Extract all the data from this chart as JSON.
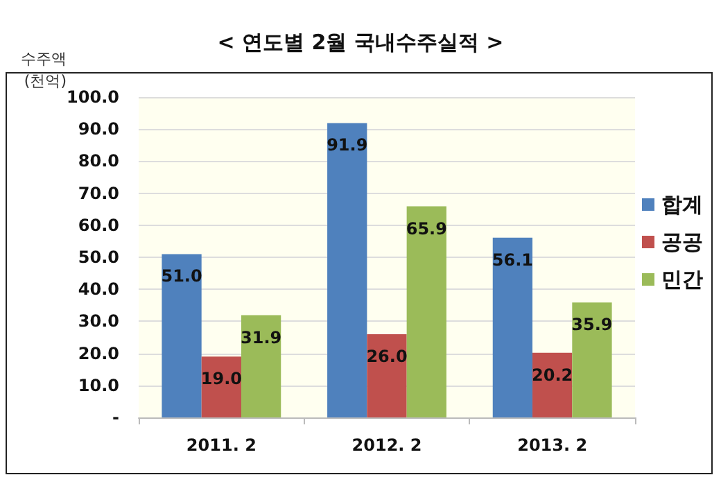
{
  "chart_data": {
    "type": "bar",
    "title": "< 연도별 2월 국내수주실적 >",
    "ylabel": "수주액\n(천억)",
    "categories": [
      "2011. 2",
      "2012. 2",
      "2013. 2"
    ],
    "series": [
      {
        "name": "합계",
        "color": "#4f81bd",
        "values": [
          51.0,
          91.9,
          56.1
        ],
        "value_labels": [
          "51.0",
          "91.9",
          "56.1"
        ]
      },
      {
        "name": "공공",
        "color": "#c0504d",
        "values": [
          19.0,
          26.0,
          20.2
        ],
        "value_labels": [
          "19.0",
          "26.0",
          "20.2"
        ]
      },
      {
        "name": "민간",
        "color": "#9bbb59",
        "values": [
          31.9,
          65.9,
          35.9
        ],
        "value_labels": [
          "31.9",
          "65.9",
          "35.9"
        ]
      }
    ],
    "ylim": [
      0,
      100
    ],
    "yticks": [
      {
        "value": 0,
        "label": "-"
      },
      {
        "value": 10,
        "label": "10.0"
      },
      {
        "value": 20,
        "label": "20.0"
      },
      {
        "value": 30,
        "label": "30.0"
      },
      {
        "value": 40,
        "label": "40.0"
      },
      {
        "value": 50,
        "label": "50.0"
      },
      {
        "value": 60,
        "label": "60.0"
      },
      {
        "value": 70,
        "label": "70.0"
      },
      {
        "value": 80,
        "label": "80.0"
      },
      {
        "value": 90,
        "label": "90.0"
      },
      {
        "value": 100,
        "label": "100.0"
      }
    ],
    "grid": "y",
    "legend": "right"
  }
}
